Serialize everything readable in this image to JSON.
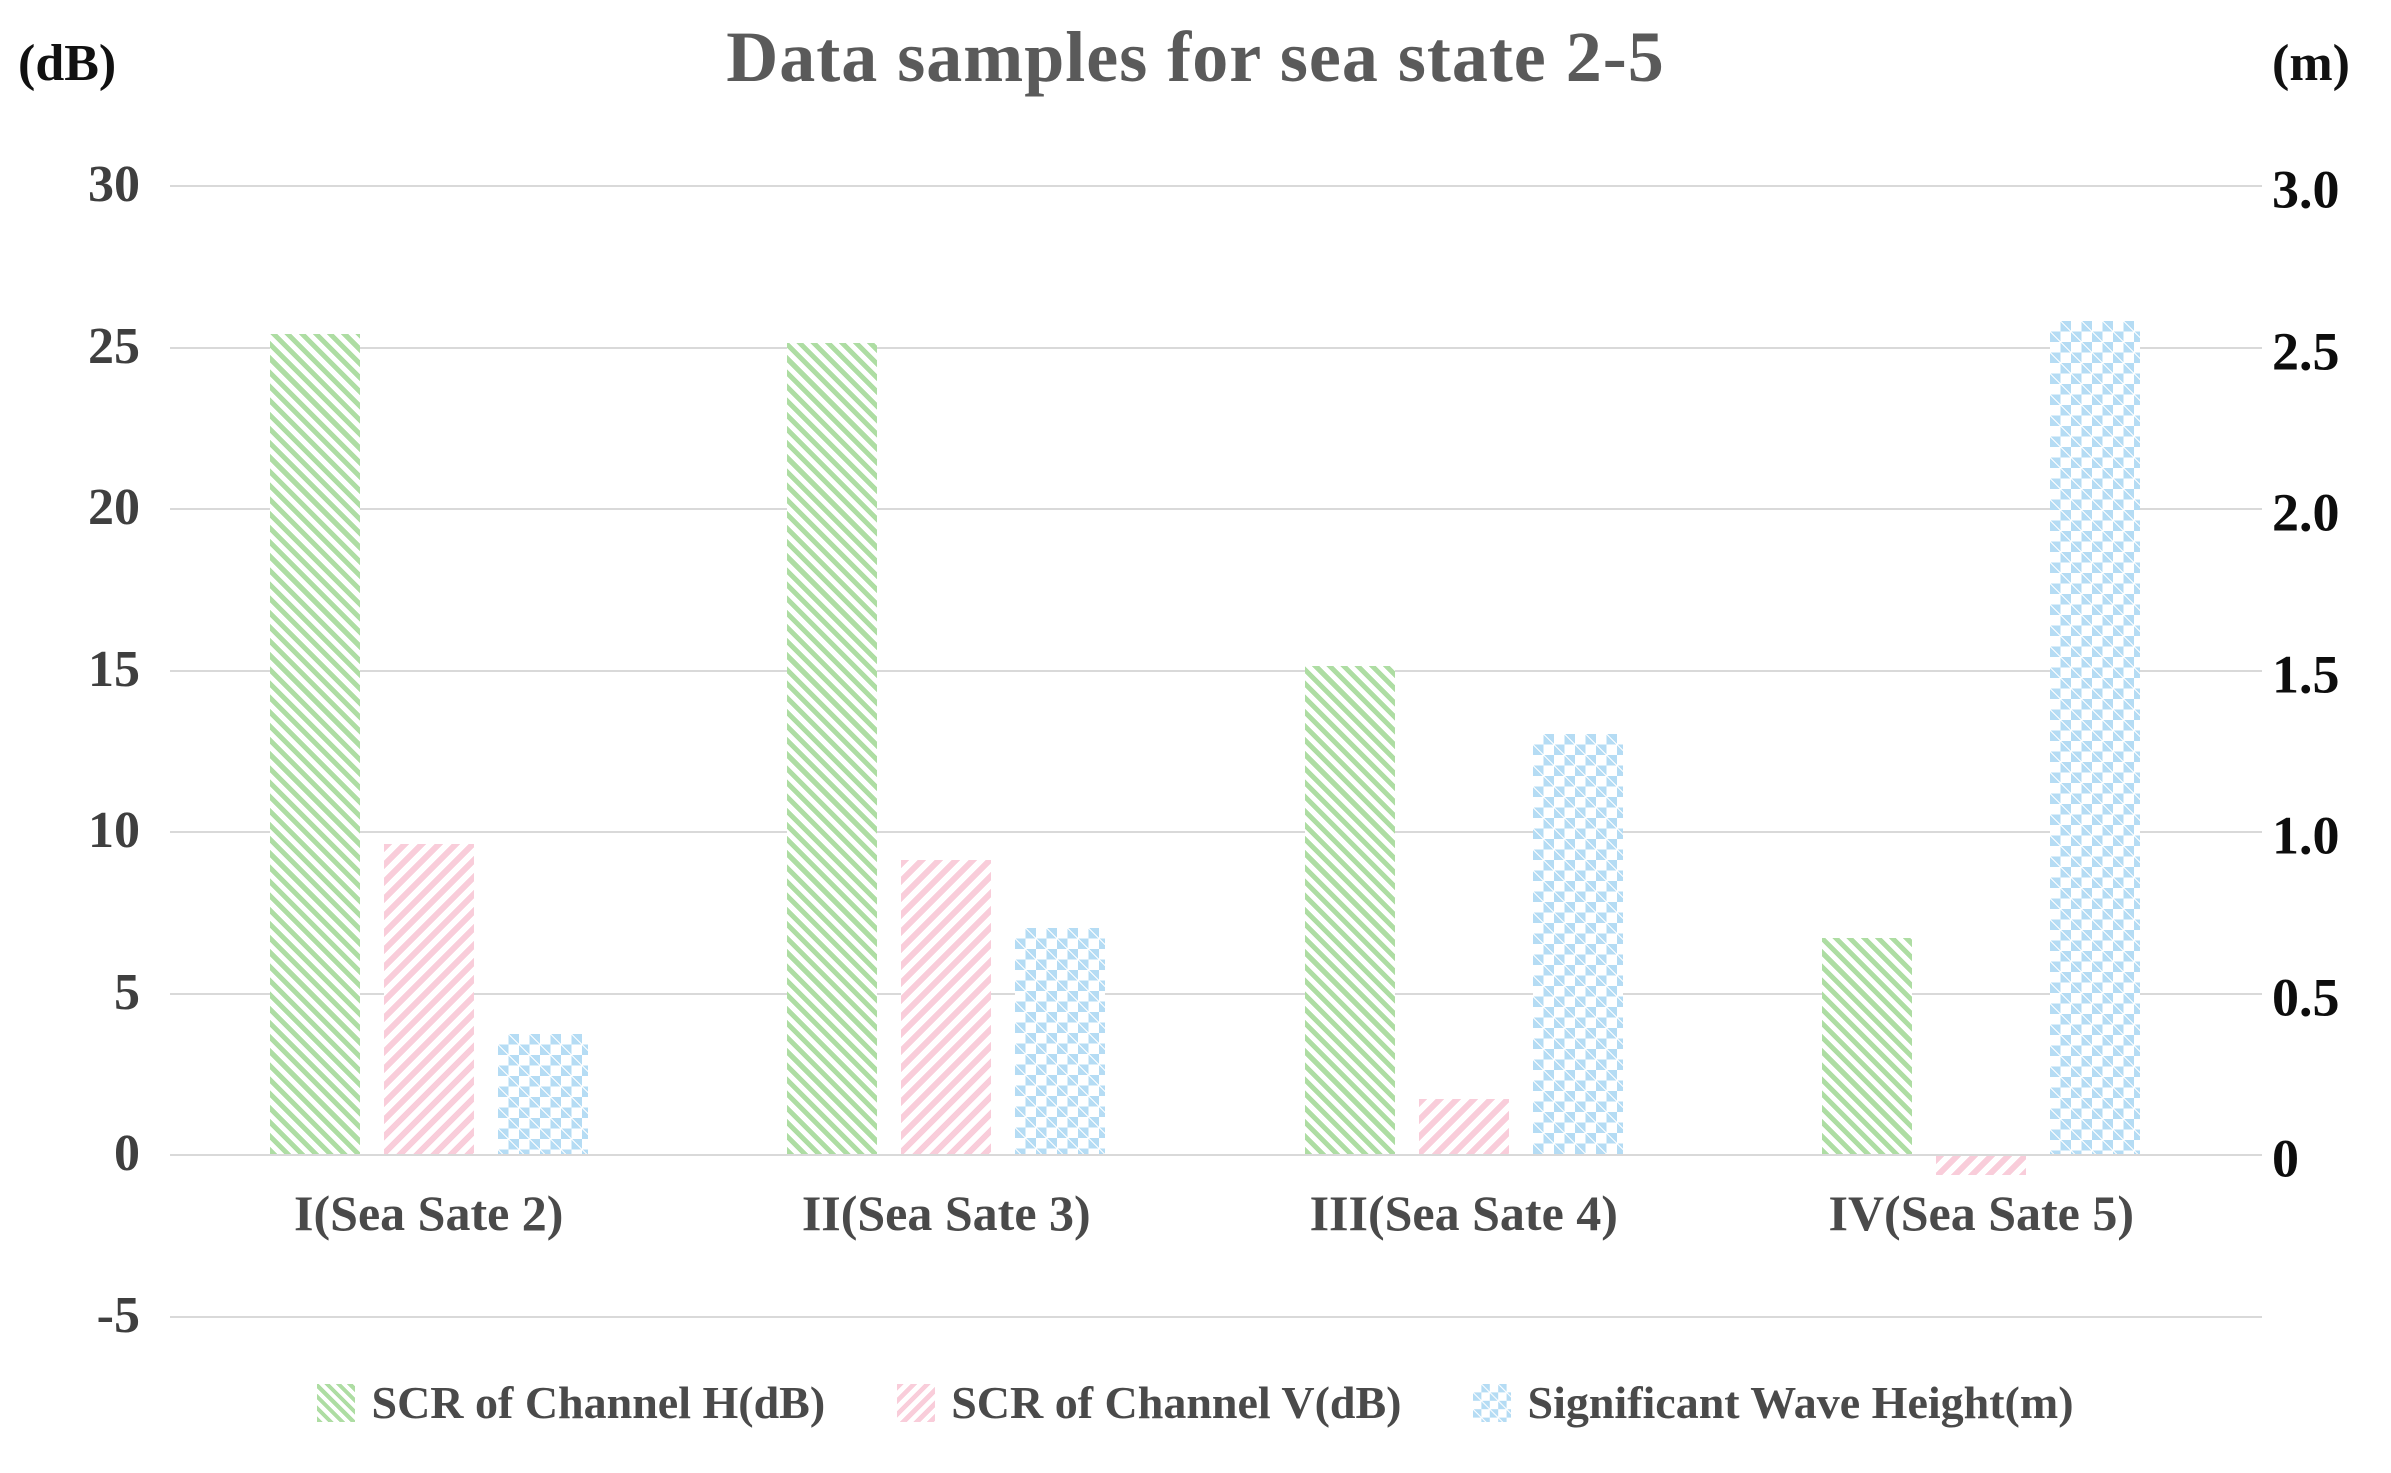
{
  "title": "Data samples for sea state 2-5",
  "chart_data": {
    "type": "bar",
    "title": "Data samples for sea state 2-5",
    "grid": true,
    "legend_position": "bottom",
    "left_axis": {
      "unit": "(dB)",
      "min": -5,
      "max": 30,
      "ticks": [
        "30",
        "25",
        "20",
        "15",
        "10",
        "5",
        "0",
        "-5"
      ]
    },
    "right_axis": {
      "unit": "(m)",
      "min": 0,
      "max": 3.0,
      "ticks": [
        "3.0",
        "2.5",
        "2.0",
        "1.5",
        "1.0",
        "0.5",
        "0"
      ]
    },
    "categories": [
      "I(Sea Sate 2)",
      "II(Sea Sate 3)",
      "III(Sea Sate 4)",
      "IV(Sea Sate 5)"
    ],
    "series": [
      {
        "name": "SCR of Channel H(dB)",
        "key": "scr-channel-h",
        "axis": "left",
        "pattern": "diagonal-down",
        "color": "#aedda3",
        "values": [
          25.4,
          25.1,
          15.1,
          6.7
        ]
      },
      {
        "name": "SCR of Channel V(dB)",
        "key": "scr-channel-v",
        "axis": "left",
        "pattern": "diagonal-up",
        "color": "#f9cdda",
        "values": [
          9.6,
          9.1,
          1.7,
          -0.6
        ]
      },
      {
        "name": "Significant Wave Height(m)",
        "key": "significant-wave-height",
        "axis": "right",
        "pattern": "diamond",
        "color": "#b5dcf4",
        "values": [
          0.37,
          0.7,
          1.3,
          2.58
        ]
      }
    ]
  }
}
